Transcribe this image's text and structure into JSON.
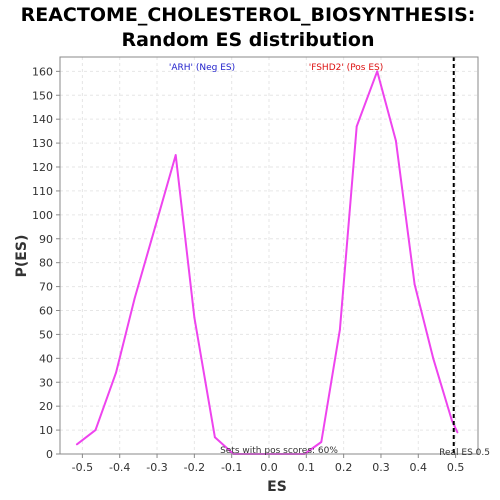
{
  "chart_data": {
    "type": "line",
    "title_line1": "REACTOME_CHOLESTEROL_BIOSYNTHESIS:",
    "title_line2": "Random ES distribution",
    "xlabel": "ES",
    "ylabel": "P(ES)",
    "xlim": [
      -0.56,
      0.56
    ],
    "ylim": [
      0,
      166
    ],
    "xticks": [
      -0.5,
      -0.4,
      -0.3,
      -0.2,
      -0.1,
      0.0,
      0.1,
      0.2,
      0.3,
      0.4,
      0.5
    ],
    "yticks": [
      0,
      10,
      20,
      30,
      40,
      50,
      60,
      70,
      80,
      90,
      100,
      110,
      120,
      130,
      140,
      150,
      160
    ],
    "grid": true,
    "series": [
      {
        "color": "#ee44ee",
        "x": [
          -0.515,
          -0.465,
          -0.41,
          -0.36,
          -0.305,
          -0.25,
          -0.2,
          -0.145,
          -0.095,
          0.095,
          0.14,
          0.19,
          0.235,
          0.29,
          0.34,
          0.39,
          0.44,
          0.49,
          0.505
        ],
        "y": [
          4,
          10,
          34,
          65,
          95,
          125,
          57,
          7,
          0,
          0,
          5,
          52,
          137,
          160,
          131,
          71,
          40,
          14,
          9
        ]
      }
    ],
    "real_es": 0.495,
    "annotations": {
      "neg_label": "'ARH' (Neg ES)",
      "neg_color": "#2222cc",
      "pos_label": "'FSHD2' (Pos ES)",
      "pos_color": "#dd1111",
      "pos_scores": "Sets with pos scores: 60%",
      "real_es_label": "Real ES 0.5"
    }
  }
}
